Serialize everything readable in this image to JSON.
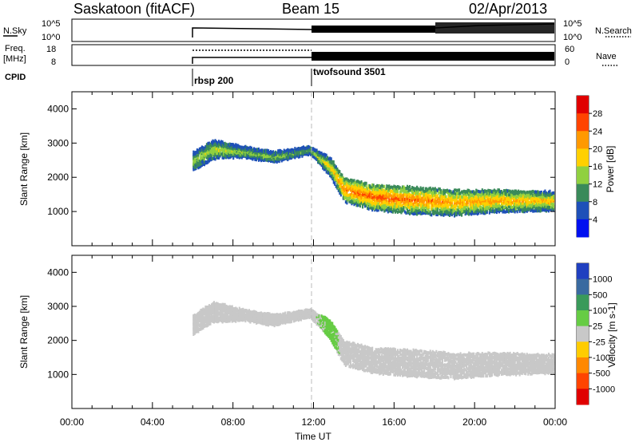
{
  "header": {
    "station": "Saskatoon (fitACF)",
    "beam": "Beam 15",
    "date": "02/Apr/2013"
  },
  "panels": {
    "noise": {
      "left_label": "N.Sky",
      "right_label": "N.Search",
      "left_ticks": [
        "10^5",
        "10^0"
      ],
      "right_ticks": [
        "10^5",
        "10^0"
      ]
    },
    "freq": {
      "left_label_1": "Freq.",
      "left_label_2": "[MHz]",
      "right_label": "Nave",
      "left_ticks": [
        "18",
        "8"
      ],
      "right_ticks": [
        "60",
        "0"
      ]
    },
    "cpid": {
      "label": "CPID",
      "modes": [
        {
          "name": "rbsp 200"
        },
        {
          "name": "twofsound 3501"
        }
      ]
    }
  },
  "power_panel": {
    "ylabel": "Slant Range [km]",
    "colorbar_label": "Power [dB]",
    "colorbar_ticks": [
      "28",
      "24",
      "20",
      "16",
      "12",
      "8",
      "4"
    ],
    "colorbar_colors": [
      "#e00000",
      "#ff4400",
      "#ff9900",
      "#ffd000",
      "#90d040",
      "#3a8a5a",
      "#1e50b8",
      "#0010f0"
    ]
  },
  "velocity_panel": {
    "ylabel": "Slant Range [km]",
    "colorbar_label": "Velocity [m s-1]",
    "colorbar_ticks": [
      "1000",
      "500",
      "100",
      "25",
      "-25",
      "-100",
      "-500",
      "-1000"
    ],
    "colorbar_colors": [
      "#2040c0",
      "#3a6aa0",
      "#3a9a5a",
      "#66cc44",
      "#c8c8c8",
      "#ffcc00",
      "#ff8800",
      "#ff4400",
      "#e00000"
    ]
  },
  "x_axis": {
    "label": "Time UT",
    "ticks": [
      "00:00",
      "04:00",
      "08:00",
      "12:00",
      "16:00",
      "20:00",
      "00:00"
    ]
  },
  "chart_data": [
    {
      "type": "heatmap",
      "title": "Power",
      "xlabel": "Time UT",
      "ylabel": "Slant Range [km]",
      "xlim_hours": [
        0,
        24
      ],
      "ylim": [
        0,
        4500
      ],
      "y_ticks": [
        1000,
        2000,
        3000,
        4000
      ],
      "colorbar": {
        "label": "Power [dB]",
        "ticks": [
          4,
          8,
          12,
          16,
          20,
          24,
          28
        ]
      },
      "echo_band": [
        {
          "t": 6.0,
          "lower_km": 2200,
          "upper_km": 2750,
          "power_db": 12
        },
        {
          "t": 7.0,
          "lower_km": 2550,
          "upper_km": 3100,
          "power_db": 14
        },
        {
          "t": 8.5,
          "lower_km": 2600,
          "upper_km": 2900,
          "power_db": 12
        },
        {
          "t": 10.0,
          "lower_km": 2450,
          "upper_km": 2750,
          "power_db": 12
        },
        {
          "t": 11.8,
          "lower_km": 2700,
          "upper_km": 2900,
          "power_db": 10
        },
        {
          "t": 12.8,
          "lower_km": 2050,
          "upper_km": 2600,
          "power_db": 16
        },
        {
          "t": 13.5,
          "lower_km": 1300,
          "upper_km": 2000,
          "power_db": 22
        },
        {
          "t": 15.0,
          "lower_km": 1050,
          "upper_km": 1800,
          "power_db": 24
        },
        {
          "t": 17.0,
          "lower_km": 950,
          "upper_km": 1750,
          "power_db": 22
        },
        {
          "t": 19.0,
          "lower_km": 900,
          "upper_km": 1650,
          "power_db": 20
        },
        {
          "t": 21.0,
          "lower_km": 1000,
          "upper_km": 1650,
          "power_db": 20
        },
        {
          "t": 23.9,
          "lower_km": 1050,
          "upper_km": 1600,
          "power_db": 18
        }
      ]
    },
    {
      "type": "heatmap",
      "title": "Velocity",
      "xlabel": "Time UT",
      "ylabel": "Slant Range [km]",
      "xlim_hours": [
        0,
        24
      ],
      "ylim": [
        0,
        4500
      ],
      "y_ticks": [
        1000,
        2000,
        3000,
        4000
      ],
      "colorbar": {
        "label": "Velocity [m s-1]",
        "ticks": [
          -1000,
          -500,
          -100,
          -25,
          25,
          100,
          500,
          1000
        ]
      },
      "echo_band": [
        {
          "t": 6.0,
          "lower_km": 2200,
          "upper_km": 2750,
          "velocity": 0
        },
        {
          "t": 7.0,
          "lower_km": 2550,
          "upper_km": 3150,
          "velocity": 0
        },
        {
          "t": 8.5,
          "lower_km": 2600,
          "upper_km": 2900,
          "velocity": 0
        },
        {
          "t": 10.0,
          "lower_km": 2450,
          "upper_km": 2750,
          "velocity": 0
        },
        {
          "t": 11.8,
          "lower_km": 2700,
          "upper_km": 2900,
          "velocity": 0
        },
        {
          "t": 12.8,
          "lower_km": 2050,
          "upper_km": 2600,
          "velocity": 50
        },
        {
          "t": 13.5,
          "lower_km": 1300,
          "upper_km": 2000,
          "velocity": 0
        },
        {
          "t": 15.0,
          "lower_km": 1050,
          "upper_km": 1800,
          "velocity": 0
        },
        {
          "t": 17.0,
          "lower_km": 950,
          "upper_km": 1750,
          "velocity": 0
        },
        {
          "t": 19.0,
          "lower_km": 900,
          "upper_km": 1650,
          "velocity": 0
        },
        {
          "t": 21.0,
          "lower_km": 1000,
          "upper_km": 1650,
          "velocity": 0
        },
        {
          "t": 23.9,
          "lower_km": 1050,
          "upper_km": 1600,
          "velocity": 0
        }
      ]
    }
  ]
}
